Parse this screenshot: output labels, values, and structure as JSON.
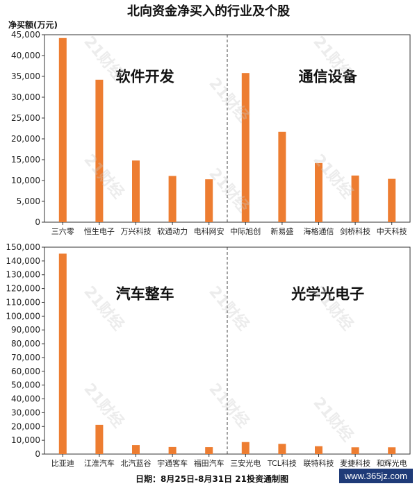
{
  "title": "北向资金净买入的行业及个股",
  "unit_label": "净买额(万元)",
  "footer": "日期：8月25日-8月31日 21投资通制图",
  "website": "www.365jz.com",
  "watermark": "21财经",
  "colors": {
    "bar": "#ED7D31",
    "axis": "#333333",
    "divider": "#444444"
  },
  "chart_data": [
    {
      "type": "bar",
      "ylim": [
        0,
        45000
      ],
      "ytick_step": 5000,
      "groups": [
        {
          "label": "软件开发",
          "categories": [
            "三六零",
            "恒生电子",
            "万兴科技",
            "软通动力",
            "电科网安"
          ],
          "values": [
            44200,
            34200,
            14800,
            11100,
            10300
          ]
        },
        {
          "label": "通信设备",
          "categories": [
            "中际旭创",
            "新易盛",
            "海格通信",
            "剑桥科技",
            "中天科技"
          ],
          "values": [
            35800,
            21700,
            14200,
            11200,
            10400
          ]
        }
      ]
    },
    {
      "type": "bar",
      "ylim": [
        0,
        150000
      ],
      "ytick_step": 10000,
      "groups": [
        {
          "label": "汽车整车",
          "categories": [
            "比亚迪",
            "江淮汽车",
            "北汽蓝谷",
            "宇通客车",
            "福田汽车"
          ],
          "values": [
            145300,
            21200,
            6500,
            5100,
            5000
          ]
        },
        {
          "label": "光学光电子",
          "categories": [
            "三安光电",
            "TCL科技",
            "联特科技",
            "麦捷科技",
            "和辉光电"
          ],
          "values": [
            8700,
            7400,
            5700,
            4900,
            4900
          ]
        }
      ]
    }
  ]
}
